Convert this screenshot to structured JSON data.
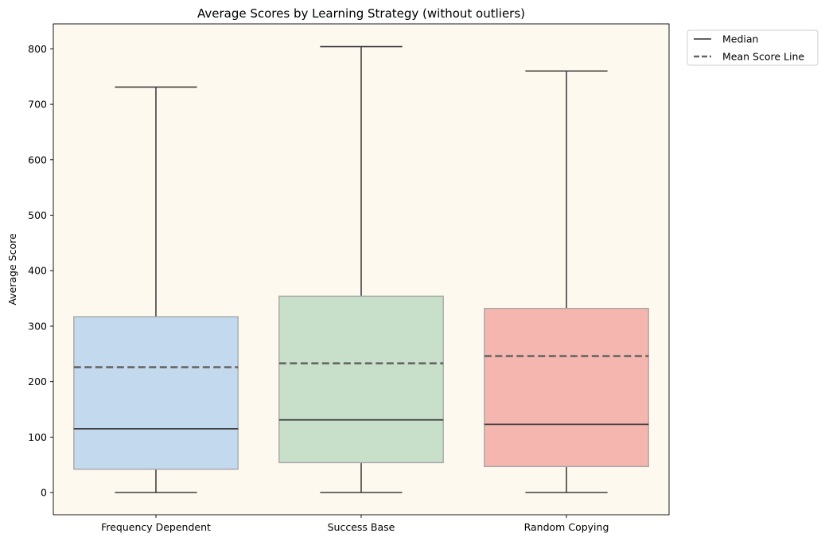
{
  "chart_data": {
    "type": "box",
    "title": "Average Scores by Learning Strategy (without outliers)",
    "xlabel": "",
    "ylabel": "Average Score",
    "ylim": [
      -40,
      845
    ],
    "yticks": [
      0,
      100,
      200,
      300,
      400,
      500,
      600,
      700,
      800
    ],
    "plot_background": "#fdf9ef",
    "median_color": "#404040",
    "mean_line_color": "#666666",
    "categories": [
      "Frequency Dependent",
      "Success Base",
      "Random Copying"
    ],
    "boxes": [
      {
        "category": "Frequency Dependent",
        "whisker_low": 0,
        "q1": 42,
        "median": 115,
        "q3": 317,
        "whisker_high": 731,
        "mean": 226,
        "color": "#c3d9ee"
      },
      {
        "category": "Success Base",
        "whisker_low": 0,
        "q1": 54,
        "median": 131,
        "q3": 354,
        "whisker_high": 804,
        "mean": 233,
        "color": "#c8e0ca"
      },
      {
        "category": "Random Copying",
        "whisker_low": 0,
        "q1": 47,
        "median": 123,
        "q3": 332,
        "whisker_high": 760,
        "mean": 246,
        "color": "#f6b6b0"
      }
    ],
    "legend": {
      "position": "outside-top-right",
      "entries": [
        {
          "label": "Median",
          "style": "solid"
        },
        {
          "label": "Mean Score Line",
          "style": "dashed"
        }
      ]
    }
  }
}
